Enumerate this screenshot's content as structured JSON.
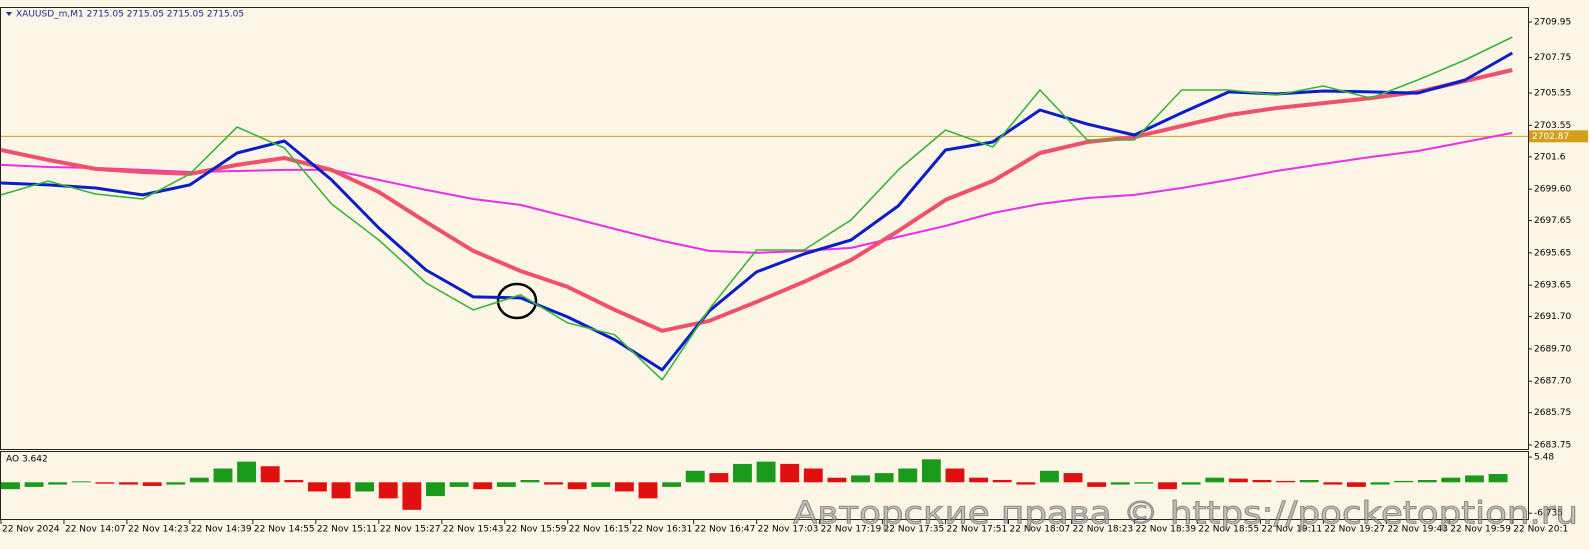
{
  "chart_data": [
    {
      "type": "line",
      "title": "XAUUSD_m,M1  2715.05 2715.05 2715.05 2715.05",
      "x": [
        0,
        12,
        24,
        36,
        48,
        60,
        72,
        84,
        96,
        108,
        120,
        132,
        144,
        156,
        168,
        180,
        192,
        204,
        216,
        228,
        240,
        252,
        264,
        276,
        288,
        300,
        312,
        324,
        336,
        348,
        360,
        372,
        384
      ],
      "xlim": [
        0,
        388
      ],
      "xticks": [
        {
          "value": 0,
          "label": "22 Nov 2024"
        },
        {
          "value": 16,
          "label": "22 Nov 14:07"
        },
        {
          "value": 32,
          "label": "22 Nov 14:23"
        },
        {
          "value": 48,
          "label": "22 Nov 14:39"
        },
        {
          "value": 64,
          "label": "22 Nov 14:55"
        },
        {
          "value": 80,
          "label": "22 Nov 15:11"
        },
        {
          "value": 96,
          "label": "22 Nov 15:27"
        },
        {
          "value": 112,
          "label": "22 Nov 15:43"
        },
        {
          "value": 128,
          "label": "22 Nov 15:59"
        },
        {
          "value": 144,
          "label": "22 Nov 16:15"
        },
        {
          "value": 160,
          "label": "22 Nov 16:31"
        },
        {
          "value": 176,
          "label": "22 Nov 16:47"
        },
        {
          "value": 192,
          "label": "22 Nov 17:03"
        },
        {
          "value": 208,
          "label": "22 Nov 17:19"
        },
        {
          "value": 224,
          "label": "22 Nov 17:35"
        },
        {
          "value": 240,
          "label": "22 Nov 17:51"
        },
        {
          "value": 256,
          "label": "22 Nov 18:07"
        },
        {
          "value": 272,
          "label": "22 Nov 18:23"
        },
        {
          "value": 288,
          "label": "22 Nov 18:39"
        },
        {
          "value": 304,
          "label": "22 Nov 18:55"
        },
        {
          "value": 320,
          "label": "22 Nov 19:11"
        },
        {
          "value": 336,
          "label": "22 Nov 19:27"
        },
        {
          "value": 352,
          "label": "22 Nov 19:43"
        },
        {
          "value": 368,
          "label": "22 Nov 19:59"
        },
        {
          "value": 384,
          "label": "22 Nov 20:1"
        }
      ],
      "ylim": [
        2683.5,
        2710.82
      ],
      "yticks": [
        2709.95,
        2707.75,
        2705.55,
        2703.55,
        2701.6,
        {
          "value": 2699.6,
          "label": "2699.60"
        },
        2697.65,
        2695.65,
        2693.65,
        {
          "value": 2691.7,
          "label": "2691.70"
        },
        {
          "value": 2689.7,
          "label": "2689.70"
        },
        {
          "value": 2687.7,
          "label": "2687.70"
        },
        2685.75,
        2683.75
      ],
      "hline": {
        "value": 2702.87,
        "color": "#d4a017"
      },
      "series": [
        {
          "color": "#e632e6",
          "width": 2,
          "values": [
            2701.1,
            2700.97,
            2700.91,
            2700.79,
            2700.66,
            2700.72,
            2700.79,
            2700.79,
            2700.17,
            2699.55,
            2698.99,
            2698.62,
            2697.88,
            2697.13,
            2696.39,
            2695.77,
            2695.65,
            2695.77,
            2695.96,
            2696.64,
            2697.32,
            2698.12,
            2698.68,
            2699.05,
            2699.24,
            2699.67,
            2700.17,
            2700.72,
            2701.16,
            2701.59,
            2701.96,
            2702.52,
            2703.08
          ]
        },
        {
          "color": "#f0506e",
          "width": 4,
          "values": [
            2702.02,
            2701.41,
            2700.85,
            2700.66,
            2700.54,
            2701.1,
            2701.53,
            2700.79,
            2699.42,
            2697.57,
            2695.77,
            2694.53,
            2693.54,
            2692.12,
            2690.82,
            2691.44,
            2692.61,
            2693.85,
            2695.21,
            2697.01,
            2698.93,
            2700.1,
            2701.84,
            2702.52,
            2702.83,
            2703.51,
            2704.19,
            2704.62,
            2704.93,
            2705.24,
            2705.62,
            2706.3,
            2706.98
          ]
        },
        {
          "color": "#0a1ec8",
          "width": 3,
          "values": [
            2699.98,
            2699.86,
            2699.67,
            2699.24,
            2699.86,
            2701.84,
            2702.58,
            2700.17,
            2697.19,
            2694.59,
            2692.92,
            2692.86,
            2691.68,
            2690.26,
            2688.4,
            2692.06,
            2694.47,
            2695.58,
            2696.45,
            2698.56,
            2702.02,
            2702.52,
            2704.5,
            2703.63,
            2702.95,
            2704.32,
            2705.62,
            2705.49,
            2705.68,
            2705.62,
            2705.55,
            2706.36,
            2708.03
          ]
        },
        {
          "color": "#3cb43c",
          "width": 1.6,
          "values": [
            2699.24,
            2700.1,
            2699.3,
            2698.99,
            2700.54,
            2703.45,
            2702.15,
            2698.68,
            2696.45,
            2693.79,
            2692.12,
            2693.05,
            2691.31,
            2690.57,
            2687.78,
            2692.18,
            2695.83,
            2695.83,
            2697.69,
            2700.79,
            2703.26,
            2702.21,
            2705.74,
            2702.64,
            2702.64,
            2705.74,
            2705.74,
            2705.43,
            2705.99,
            2705.24,
            2706.36,
            2707.6,
            2709.02
          ]
        }
      ]
    },
    {
      "type": "bar",
      "title": "AO 3.642",
      "up_color": "#1a9a1a",
      "down_color": "#e01010",
      "x": [
        0,
        6,
        12,
        18,
        24,
        30,
        36,
        42,
        48,
        54,
        60,
        66,
        72,
        78,
        84,
        90,
        96,
        102,
        108,
        114,
        120,
        126,
        132,
        138,
        144,
        150,
        156,
        162,
        168,
        174,
        180,
        186,
        192,
        198,
        204,
        210,
        216,
        222,
        228,
        234,
        240,
        246,
        252,
        258,
        264,
        270,
        276,
        282,
        288,
        294,
        300,
        306,
        312,
        318,
        324,
        330,
        336,
        342,
        348,
        354,
        360,
        366,
        372,
        378
      ],
      "values": [
        -1.5,
        -1,
        -0.5,
        0.2,
        -0.3,
        -0.5,
        -0.8,
        -0.5,
        1,
        3,
        4.5,
        3.5,
        0.5,
        -2,
        -3.5,
        -2,
        -3.5,
        -6,
        -3,
        -1,
        -1.5,
        -1,
        0.5,
        -0.5,
        -1.5,
        -1,
        -2,
        -3.5,
        -1,
        2.5,
        2,
        4,
        4.5,
        4,
        3,
        1,
        1.5,
        2,
        3,
        5,
        3,
        1,
        0.5,
        -0.5,
        2.5,
        2,
        -1,
        -0.5,
        -0.3,
        -1.5,
        -0.5,
        1,
        0.8,
        0.5,
        0.3,
        0.5,
        -0.5,
        -1,
        -0.5,
        0.3,
        0.5,
        1,
        1.5,
        1.8
      ],
      "ylim": [
        -8.0,
        6.6
      ],
      "yticks": [
        5.48,
        -6.735
      ]
    },
    {
      "watermark": "Авторские права © https://pocketoption.ru"
    }
  ]
}
